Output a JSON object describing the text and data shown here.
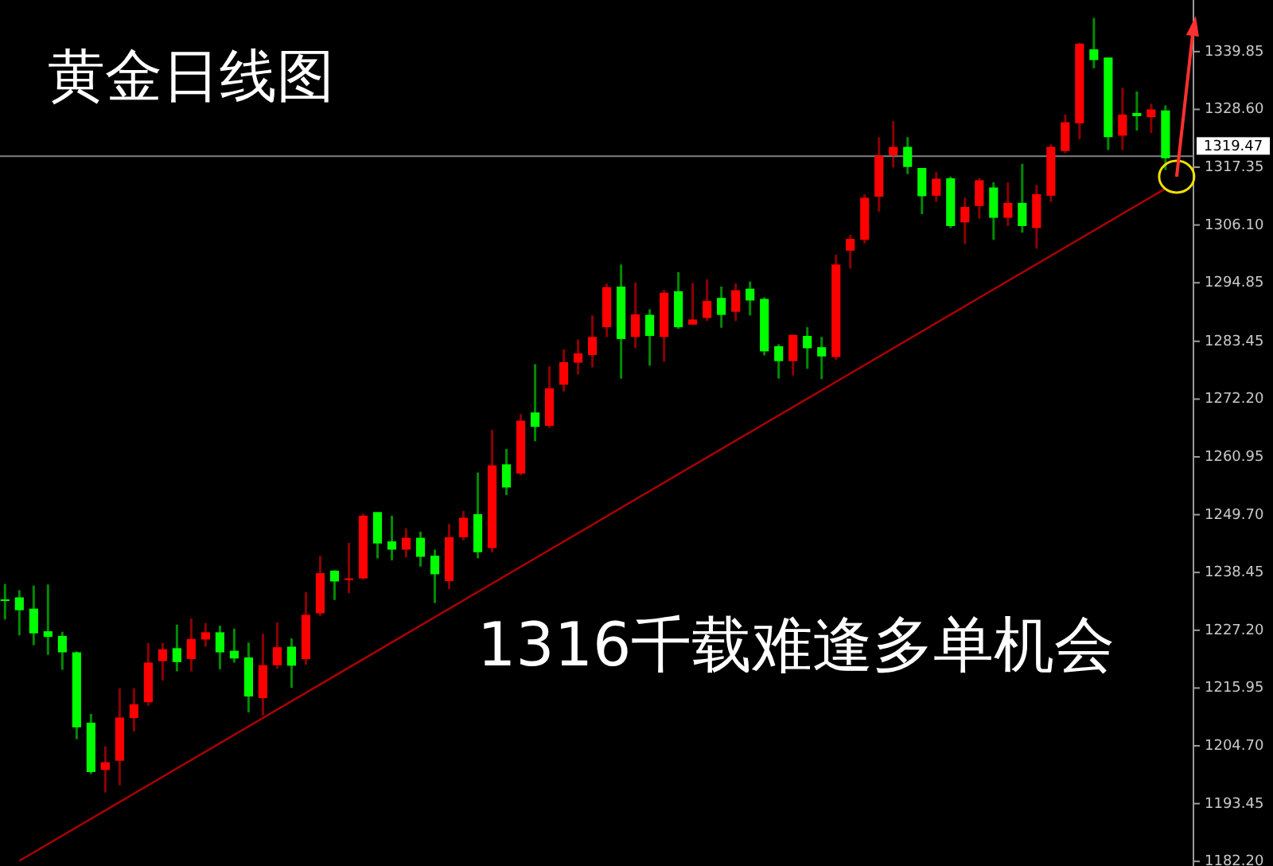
{
  "chart_data": {
    "type": "candlestick",
    "title": "黄金日线图",
    "annotations": [
      "1316千载难逢多单机会"
    ],
    "tick_labels": "y",
    "categories": [
      null,
      null,
      null,
      null,
      null,
      null,
      null,
      null,
      null,
      null,
      null,
      null,
      null,
      null,
      null,
      null,
      null,
      null,
      null,
      null,
      null,
      null,
      null,
      null,
      null,
      null,
      null,
      null,
      null,
      null,
      null,
      null,
      null,
      null,
      null,
      null,
      null,
      null,
      null,
      null,
      null,
      null,
      null,
      null,
      null,
      null,
      null,
      null,
      null,
      null,
      null,
      null,
      null,
      null,
      null,
      null,
      null,
      null,
      null,
      null,
      null,
      null,
      null,
      null,
      null,
      null,
      null,
      null,
      null,
      null,
      null,
      null,
      null,
      null,
      null,
      null,
      null,
      null,
      null,
      null,
      null,
      null
    ],
    "ohlc": [
      [
        1233.2,
        1236.2,
        1229.3,
        1233.0
      ],
      [
        1233.6,
        1235.0,
        1226.2,
        1231.1
      ],
      [
        1231.4,
        1235.9,
        1224.3,
        1226.6
      ],
      [
        1227.0,
        1236.1,
        1222.4,
        1225.9
      ],
      [
        1226.1,
        1226.9,
        1219.5,
        1222.9
      ],
      [
        1222.9,
        1223.1,
        1206.0,
        1208.3
      ],
      [
        1209.2,
        1210.9,
        1199.2,
        1199.6
      ],
      [
        1200.0,
        1204.6,
        1195.6,
        1201.5
      ],
      [
        1201.8,
        1215.9,
        1197.0,
        1210.2
      ],
      [
        1210.1,
        1215.9,
        1207.5,
        1212.8
      ],
      [
        1213.2,
        1224.7,
        1212.5,
        1220.9
      ],
      [
        1221.2,
        1224.7,
        1217.4,
        1223.5
      ],
      [
        1223.7,
        1228.3,
        1219.2,
        1221.0
      ],
      [
        1221.6,
        1229.5,
        1219.2,
        1225.5
      ],
      [
        1225.4,
        1228.6,
        1224.0,
        1226.8
      ],
      [
        1226.8,
        1228.1,
        1219.6,
        1222.9
      ],
      [
        1223.2,
        1227.5,
        1220.9,
        1221.7
      ],
      [
        1221.9,
        1224.8,
        1211.2,
        1214.3
      ],
      [
        1214.0,
        1226.5,
        1210.6,
        1220.4
      ],
      [
        1220.4,
        1228.7,
        1219.7,
        1223.9
      ],
      [
        1224.0,
        1225.6,
        1216.0,
        1220.3
      ],
      [
        1221.6,
        1234.6,
        1220.5,
        1230.2
      ],
      [
        1230.5,
        1241.7,
        1230.0,
        1238.3
      ],
      [
        1238.8,
        1238.9,
        1233.1,
        1236.7
      ],
      [
        1237.0,
        1244.2,
        1234.4,
        1237.3
      ],
      [
        1237.3,
        1249.9,
        1237.1,
        1249.5
      ],
      [
        1250.2,
        1250.2,
        1241.2,
        1244.1
      ],
      [
        1244.5,
        1249.5,
        1240.8,
        1242.9
      ],
      [
        1242.9,
        1247.0,
        1241.4,
        1245.2
      ],
      [
        1245.2,
        1246.4,
        1239.6,
        1241.5
      ],
      [
        1241.7,
        1242.9,
        1232.5,
        1238.1
      ],
      [
        1236.8,
        1247.9,
        1235.2,
        1245.3
      ],
      [
        1245.3,
        1250.4,
        1244.7,
        1249.1
      ],
      [
        1249.8,
        1257.9,
        1241.2,
        1242.4
      ],
      [
        1243.2,
        1266.2,
        1242.4,
        1259.3
      ],
      [
        1259.5,
        1262.5,
        1253.5,
        1255.0
      ],
      [
        1257.7,
        1269.3,
        1257.4,
        1268.0
      ],
      [
        1269.6,
        1279.0,
        1264.0,
        1266.8
      ],
      [
        1267.0,
        1278.6,
        1266.6,
        1274.3
      ],
      [
        1275.0,
        1281.9,
        1273.7,
        1279.4
      ],
      [
        1279.3,
        1283.8,
        1277.0,
        1281.1
      ],
      [
        1280.8,
        1288.5,
        1278.4,
        1284.3
      ],
      [
        1286.2,
        1294.7,
        1284.3,
        1294.0
      ],
      [
        1294.1,
        1298.4,
        1276.2,
        1283.9
      ],
      [
        1284.3,
        1294.9,
        1282.1,
        1288.7
      ],
      [
        1288.6,
        1289.7,
        1278.7,
        1284.5
      ],
      [
        1284.3,
        1293.5,
        1279.5,
        1292.9
      ],
      [
        1293.2,
        1296.9,
        1285.9,
        1286.2
      ],
      [
        1286.7,
        1294.8,
        1286.7,
        1287.7
      ],
      [
        1288.0,
        1295.5,
        1287.4,
        1291.3
      ],
      [
        1291.9,
        1294.1,
        1286.1,
        1288.6
      ],
      [
        1289.2,
        1294.7,
        1287.4,
        1293.4
      ],
      [
        1293.7,
        1295.1,
        1288.5,
        1291.4
      ],
      [
        1291.7,
        1292.0,
        1280.7,
        1281.5
      ],
      [
        1282.5,
        1282.9,
        1276.2,
        1279.6
      ],
      [
        1279.6,
        1284.7,
        1276.8,
        1284.7
      ],
      [
        1284.5,
        1286.2,
        1278.1,
        1282.1
      ],
      [
        1282.3,
        1284.3,
        1276.1,
        1280.5
      ],
      [
        1280.4,
        1300.3,
        1279.8,
        1298.4
      ],
      [
        1301.1,
        1304.2,
        1297.6,
        1303.4
      ],
      [
        1303.2,
        1312.1,
        1302.5,
        1311.4
      ],
      [
        1311.6,
        1323.2,
        1308.7,
        1319.6
      ],
      [
        1319.7,
        1326.3,
        1317.3,
        1321.3
      ],
      [
        1321.3,
        1323.2,
        1316.0,
        1317.4
      ],
      [
        1317.2,
        1317.2,
        1308.2,
        1311.7
      ],
      [
        1311.8,
        1316.4,
        1310.6,
        1315.1
      ],
      [
        1315.2,
        1315.5,
        1305.5,
        1305.9
      ],
      [
        1306.6,
        1311.4,
        1302.4,
        1309.6
      ],
      [
        1309.8,
        1315.2,
        1307.3,
        1314.8
      ],
      [
        1313.4,
        1314.4,
        1303.2,
        1307.5
      ],
      [
        1307.5,
        1314.4,
        1305.9,
        1310.4
      ],
      [
        1310.4,
        1318.0,
        1304.6,
        1305.9
      ],
      [
        1305.5,
        1313.9,
        1301.5,
        1312.1
      ],
      [
        1311.8,
        1321.8,
        1310.6,
        1321.3
      ],
      [
        1320.5,
        1327.6,
        1320.1,
        1326.1
      ],
      [
        1325.9,
        1341.6,
        1322.8,
        1341.4
      ],
      [
        1340.3,
        1346.4,
        1336.6,
        1338.2
      ],
      [
        1338.7,
        1338.7,
        1320.7,
        1323.2
      ],
      [
        1323.5,
        1332.8,
        1320.7,
        1327.6
      ],
      [
        1327.9,
        1332.1,
        1324.5,
        1327.3
      ],
      [
        1327.1,
        1329.7,
        1324.0,
        1328.6
      ],
      [
        1328.4,
        1329.4,
        1316.8,
        1319.1
      ]
    ],
    "colors": [
      "#00ff00",
      "#00ff00",
      "#00ff00",
      "#00ff00",
      "#00ff00",
      "#00ff00",
      "#00ff00",
      "#ff0000",
      "#ff0000",
      "#ff0000",
      "#ff0000",
      "#ff0000",
      "#00ff00",
      "#ff0000",
      "#ff0000",
      "#00ff00",
      "#00ff00",
      "#00ff00",
      "#ff0000",
      "#ff0000",
      "#00ff00",
      "#ff0000",
      "#ff0000",
      "#00ff00",
      "#ff0000",
      "#ff0000",
      "#00ff00",
      "#00ff00",
      "#ff0000",
      "#00ff00",
      "#00ff00",
      "#ff0000",
      "#ff0000",
      "#00ff00",
      "#ff0000",
      "#00ff00",
      "#ff0000",
      "#00ff00",
      "#ff0000",
      "#ff0000",
      "#ff0000",
      "#ff0000",
      "#ff0000",
      "#00ff00",
      "#ff0000",
      "#00ff00",
      "#ff0000",
      "#00ff00",
      "#ff0000",
      "#ff0000",
      "#00ff00",
      "#ff0000",
      "#00ff00",
      "#00ff00",
      "#00ff00",
      "#ff0000",
      "#00ff00",
      "#00ff00",
      "#ff0000",
      "#ff0000",
      "#ff0000",
      "#ff0000",
      "#ff0000",
      "#00ff00",
      "#00ff00",
      "#ff0000",
      "#00ff00",
      "#ff0000",
      "#ff0000",
      "#00ff00",
      "#ff0000",
      "#00ff00",
      "#ff0000",
      "#ff0000",
      "#ff0000",
      "#ff0000",
      "#00ff00",
      "#00ff00",
      "#ff0000",
      "#00ff00",
      "#ff0000",
      "#00ff00"
    ],
    "series": [
      {
        "type": "line",
        "values": [
          null,
          1182.3,
          null,
          null,
          null,
          null,
          null,
          null,
          null,
          null,
          null,
          null,
          null,
          null,
          null,
          null,
          null,
          null,
          null,
          null,
          null,
          null,
          null,
          null,
          null,
          null,
          null,
          null,
          null,
          null,
          null,
          null,
          null,
          null,
          null,
          null,
          null,
          null,
          null,
          null,
          null,
          null,
          null,
          null,
          null,
          null,
          null,
          null,
          null,
          null,
          null,
          null,
          null,
          null,
          null,
          null,
          null,
          null,
          null,
          null,
          null,
          null,
          null,
          null,
          null,
          null,
          null,
          null,
          null,
          null,
          null,
          null,
          null,
          null,
          null,
          null,
          null,
          null,
          null,
          null,
          null,
          1313.2
        ],
        "color": "#b00000"
      }
    ],
    "ref_lines": [
      {
        "axis": "y",
        "value": 1319.47,
        "label": "1319.47",
        "color": "#808080"
      }
    ],
    "ylim": [
      1181.3,
      1349.9
    ],
    "yticks": [
      {
        "value": 1182.2,
        "label": "1182.20"
      },
      {
        "value": 1193.45,
        "label": "1193.45"
      },
      {
        "value": 1204.7,
        "label": "1204.70"
      },
      {
        "value": 1215.95,
        "label": "1215.95"
      },
      {
        "value": 1227.2,
        "label": "1227.20"
      },
      {
        "value": 1238.45,
        "label": "1238.45"
      },
      {
        "value": 1249.7,
        "label": "1249.70"
      },
      {
        "value": 1260.95,
        "label": "1260.95"
      },
      {
        "value": 1272.2,
        "label": "1272.20"
      },
      {
        "value": 1283.45,
        "label": "1283.45"
      },
      {
        "value": 1294.85,
        "label": "1294.85"
      },
      {
        "value": 1306.1,
        "label": "1306.10"
      },
      {
        "value": 1317.35,
        "label": "1317.35"
      },
      {
        "value": 1328.6,
        "label": "1328.60"
      },
      {
        "value": 1339.85,
        "label": "1339.85"
      }
    ]
  }
}
